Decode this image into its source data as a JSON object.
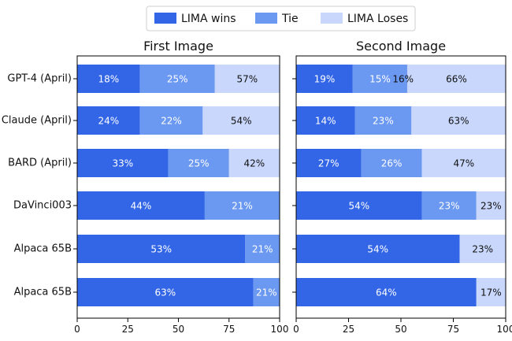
{
  "chart_data": {
    "type": "bar",
    "orientation": "horizontal",
    "stacked": true,
    "legend": {
      "position": "top-center",
      "items": [
        {
          "key": "wins",
          "label": "LIMA wins",
          "color": "#3366e6"
        },
        {
          "key": "tie",
          "label": "Tie",
          "color": "#6b98f0"
        },
        {
          "key": "loses",
          "label": "LIMA Loses",
          "color": "#c8d7fb"
        }
      ]
    },
    "categories": [
      "GPT-4 (April)",
      "Claude (April)",
      "BARD (April)",
      "DaVinci003",
      "Alpaca 65B",
      "Alpaca 65B"
    ],
    "xlim": [
      0,
      100
    ],
    "xticks": [
      0,
      25,
      50,
      75,
      100
    ],
    "panels": [
      {
        "title": "First Image",
        "series": [
          {
            "name": "LIMA wins",
            "values": [
              18,
              24,
              33,
              44,
              53,
              63
            ]
          },
          {
            "name": "Tie",
            "values": [
              25,
              22,
              25,
              21,
              21,
              21
            ]
          },
          {
            "name": "LIMA Loses",
            "values": [
              57,
              54,
              42,
              null,
              null,
              null
            ]
          }
        ],
        "bar_values": {
          "wins": [
            31,
            31,
            45,
            63,
            83,
            87
          ],
          "tie": [
            37,
            31,
            30,
            37,
            17,
            13
          ],
          "loses": [
            32,
            38,
            25,
            0,
            0,
            0
          ]
        }
      },
      {
        "title": "Second Image",
        "series": [
          {
            "name": "LIMA wins",
            "values": [
              19,
              14,
              27,
              54,
              54,
              64
            ]
          },
          {
            "name": "Tie",
            "values": [
              15,
              23,
              26,
              23,
              null,
              null
            ]
          },
          {
            "name": "LIMA Loses",
            "values": [
              66,
              63,
              47,
              23,
              23,
              17
            ]
          }
        ],
        "extra_labels": [
          {
            "row": 0,
            "text": "16%",
            "x_value": 51
          }
        ],
        "bar_values": {
          "wins": [
            27,
            28,
            31,
            60,
            78,
            86
          ],
          "tie": [
            26,
            27,
            29,
            26,
            0,
            0
          ],
          "loses": [
            47,
            45,
            40,
            14,
            22,
            14
          ]
        }
      }
    ]
  }
}
